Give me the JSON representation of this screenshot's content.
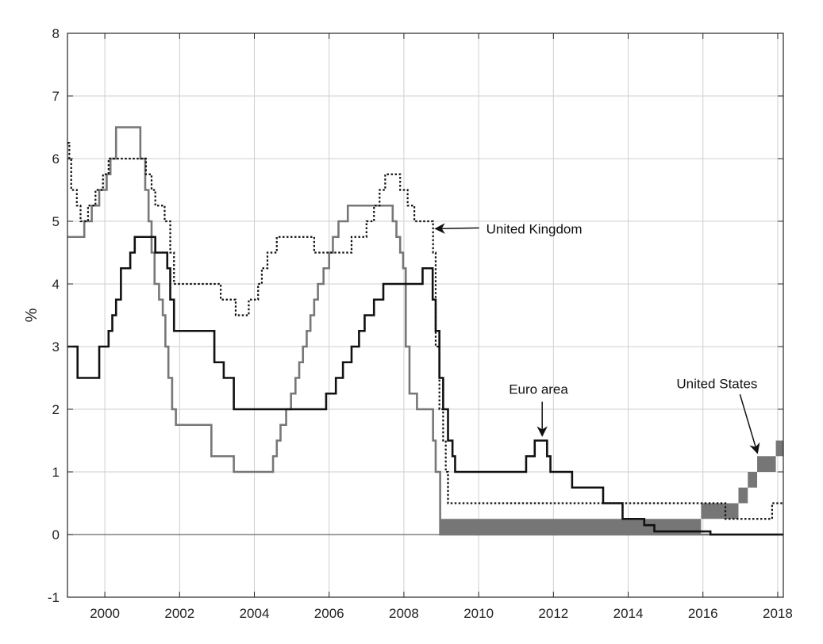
{
  "chart_data": {
    "type": "line",
    "title": "",
    "xlabel": "",
    "ylabel": "%",
    "xlim": [
      1999.0,
      2018.15
    ],
    "ylim": [
      -1,
      8
    ],
    "xticks": [
      2000,
      2002,
      2004,
      2006,
      2008,
      2010,
      2012,
      2014,
      2016,
      2018
    ],
    "yticks": [
      -1,
      0,
      1,
      2,
      3,
      4,
      5,
      6,
      7,
      8
    ],
    "xtick_labels": [
      "2000",
      "2002",
      "2004",
      "2006",
      "2008",
      "2010",
      "2012",
      "2014",
      "2016",
      "2018"
    ],
    "ytick_labels": [
      "-1",
      "0",
      "1",
      "2",
      "3",
      "4",
      "5",
      "6",
      "7",
      "8"
    ],
    "grid": true,
    "legend": "none",
    "series": [
      {
        "key": "euro",
        "name": "Euro area",
        "style": "solid",
        "color": "#111111",
        "points": [
          [
            1999.0,
            3.0
          ],
          [
            1999.27,
            2.5
          ],
          [
            1999.85,
            3.0
          ],
          [
            2000.1,
            3.25
          ],
          [
            2000.2,
            3.5
          ],
          [
            2000.3,
            3.75
          ],
          [
            2000.43,
            4.25
          ],
          [
            2000.68,
            4.5
          ],
          [
            2000.8,
            4.75
          ],
          [
            2001.35,
            4.5
          ],
          [
            2001.67,
            4.25
          ],
          [
            2001.75,
            3.75
          ],
          [
            2001.85,
            3.25
          ],
          [
            2002.93,
            2.75
          ],
          [
            2003.18,
            2.5
          ],
          [
            2003.45,
            2.0
          ],
          [
            2005.92,
            2.25
          ],
          [
            2006.18,
            2.5
          ],
          [
            2006.37,
            2.75
          ],
          [
            2006.6,
            3.0
          ],
          [
            2006.8,
            3.25
          ],
          [
            2006.95,
            3.5
          ],
          [
            2007.2,
            3.75
          ],
          [
            2007.45,
            4.0
          ],
          [
            2008.5,
            4.25
          ],
          [
            2008.77,
            3.75
          ],
          [
            2008.85,
            3.25
          ],
          [
            2008.95,
            2.5
          ],
          [
            2009.05,
            2.0
          ],
          [
            2009.18,
            1.5
          ],
          [
            2009.3,
            1.25
          ],
          [
            2009.37,
            1.0
          ],
          [
            2011.27,
            1.25
          ],
          [
            2011.5,
            1.5
          ],
          [
            2011.83,
            1.25
          ],
          [
            2011.92,
            1.0
          ],
          [
            2012.5,
            0.75
          ],
          [
            2013.33,
            0.5
          ],
          [
            2013.85,
            0.25
          ],
          [
            2014.43,
            0.15
          ],
          [
            2014.7,
            0.05
          ],
          [
            2016.2,
            0.0
          ],
          [
            2018.15,
            0.0
          ]
        ]
      },
      {
        "key": "us",
        "name": "United States",
        "style": "solid",
        "color": "#777777",
        "points": [
          [
            1999.0,
            4.75
          ],
          [
            1999.45,
            5.0
          ],
          [
            1999.65,
            5.25
          ],
          [
            1999.85,
            5.5
          ],
          [
            2000.05,
            5.75
          ],
          [
            2000.15,
            6.0
          ],
          [
            2000.3,
            6.5
          ],
          [
            2000.95,
            6.0
          ],
          [
            2001.08,
            5.5
          ],
          [
            2001.17,
            5.0
          ],
          [
            2001.25,
            4.5
          ],
          [
            2001.33,
            4.0
          ],
          [
            2001.45,
            3.75
          ],
          [
            2001.55,
            3.5
          ],
          [
            2001.62,
            3.0
          ],
          [
            2001.7,
            2.5
          ],
          [
            2001.8,
            2.0
          ],
          [
            2001.9,
            1.75
          ],
          [
            2002.85,
            1.25
          ],
          [
            2003.45,
            1.0
          ],
          [
            2004.5,
            1.25
          ],
          [
            2004.6,
            1.5
          ],
          [
            2004.7,
            1.75
          ],
          [
            2004.85,
            2.0
          ],
          [
            2004.98,
            2.25
          ],
          [
            2005.1,
            2.5
          ],
          [
            2005.2,
            2.75
          ],
          [
            2005.3,
            3.0
          ],
          [
            2005.4,
            3.25
          ],
          [
            2005.5,
            3.5
          ],
          [
            2005.6,
            3.75
          ],
          [
            2005.7,
            4.0
          ],
          [
            2005.85,
            4.25
          ],
          [
            2006.0,
            4.5
          ],
          [
            2006.1,
            4.75
          ],
          [
            2006.25,
            5.0
          ],
          [
            2006.5,
            5.25
          ],
          [
            2007.7,
            5.0
          ],
          [
            2007.8,
            4.75
          ],
          [
            2007.9,
            4.5
          ],
          [
            2007.98,
            4.25
          ],
          [
            2008.05,
            3.0
          ],
          [
            2008.15,
            2.25
          ],
          [
            2008.35,
            2.0
          ],
          [
            2008.78,
            1.5
          ],
          [
            2008.85,
            1.0
          ],
          [
            2008.97,
            0.0
          ],
          [
            2018.15,
            0.0
          ]
        ]
      },
      {
        "key": "uk",
        "name": "United Kingdom",
        "style": "dotted",
        "color": "#111111",
        "points": [
          [
            1999.0,
            6.25
          ],
          [
            1999.05,
            6.0
          ],
          [
            1999.1,
            5.5
          ],
          [
            1999.25,
            5.25
          ],
          [
            1999.35,
            5.0
          ],
          [
            1999.55,
            5.25
          ],
          [
            1999.75,
            5.5
          ],
          [
            1999.95,
            5.75
          ],
          [
            2000.1,
            6.0
          ],
          [
            2001.1,
            5.75
          ],
          [
            2001.25,
            5.5
          ],
          [
            2001.35,
            5.25
          ],
          [
            2001.6,
            5.0
          ],
          [
            2001.75,
            4.5
          ],
          [
            2001.85,
            4.0
          ],
          [
            2003.1,
            3.75
          ],
          [
            2003.5,
            3.5
          ],
          [
            2003.85,
            3.75
          ],
          [
            2004.1,
            4.0
          ],
          [
            2004.2,
            4.25
          ],
          [
            2004.35,
            4.5
          ],
          [
            2004.6,
            4.75
          ],
          [
            2005.6,
            4.5
          ],
          [
            2006.6,
            4.75
          ],
          [
            2007.0,
            5.0
          ],
          [
            2007.2,
            5.25
          ],
          [
            2007.35,
            5.5
          ],
          [
            2007.5,
            5.75
          ],
          [
            2007.9,
            5.5
          ],
          [
            2008.1,
            5.25
          ],
          [
            2008.28,
            5.0
          ],
          [
            2008.78,
            4.5
          ],
          [
            2008.85,
            3.0
          ],
          [
            2008.95,
            2.0
          ],
          [
            2009.05,
            1.5
          ],
          [
            2009.12,
            1.0
          ],
          [
            2009.18,
            0.5
          ],
          [
            2016.6,
            0.25
          ],
          [
            2017.85,
            0.5
          ],
          [
            2018.15,
            0.5
          ]
        ]
      }
    ],
    "target_ranges": [
      {
        "series": "United States",
        "start": 2008.97,
        "end": 2015.95,
        "low": 0.0,
        "high": 0.25
      },
      {
        "series": "United States",
        "start": 2015.95,
        "end": 2016.95,
        "low": 0.25,
        "high": 0.5
      },
      {
        "series": "United States",
        "start": 2016.95,
        "end": 2017.2,
        "low": 0.5,
        "high": 0.75
      },
      {
        "series": "United States",
        "start": 2017.2,
        "end": 2017.45,
        "low": 0.75,
        "high": 1.0
      },
      {
        "series": "United States",
        "start": 2017.45,
        "end": 2017.95,
        "low": 1.0,
        "high": 1.25
      },
      {
        "series": "United States",
        "start": 2017.95,
        "end": 2018.15,
        "low": 1.25,
        "high": 1.5
      }
    ],
    "annotations": [
      {
        "key": "uk",
        "text": "United Kingdom",
        "x": 2008.8,
        "y": 4.92
      },
      {
        "key": "euro",
        "text": "Euro area",
        "x": 2011.7,
        "y": 1.55
      },
      {
        "key": "us",
        "text": "United States",
        "x": 2017.5,
        "y": 1.25
      }
    ]
  }
}
